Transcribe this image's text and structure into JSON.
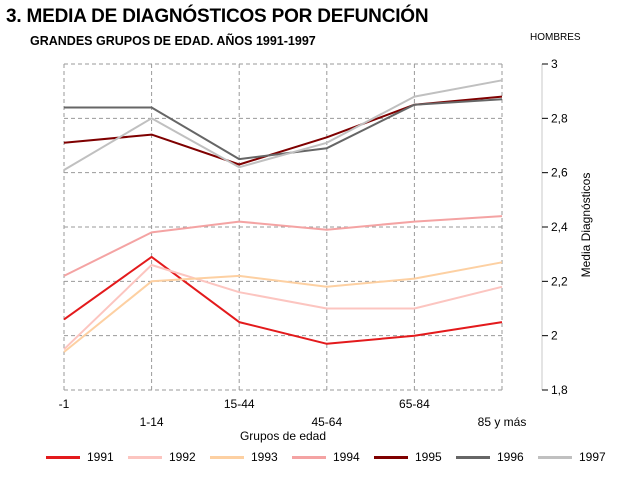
{
  "header": {
    "title": "3. MEDIA DE DIAGNÓSTICOS POR DEFUNCIÓN",
    "subtitle": "GRANDES  GRUPOS DE EDAD. AÑOS 1991-1997",
    "corner_label": "HOMBRES"
  },
  "chart_data": {
    "type": "line",
    "title": "3. MEDIA DE DIAGNÓSTICOS POR DEFUNCIÓN",
    "subtitle": "GRANDES  GRUPOS DE EDAD. AÑOS 1991-1997",
    "xlabel": "Grupos de edad",
    "ylabel": "Media Diagnósticos",
    "categories": [
      "-1",
      "1-14",
      "15-44",
      "45-64",
      "65-84",
      "85 y más"
    ],
    "ylim": [
      1.8,
      3.0
    ],
    "yticks": [
      "1,8",
      "2",
      "2,2",
      "2,4",
      "2,6",
      "2,8",
      "3"
    ],
    "ytick_values": [
      1.8,
      2.0,
      2.2,
      2.4,
      2.6,
      2.8,
      3.0
    ],
    "y_axis_position": "right",
    "grid": true,
    "legend_position": "bottom",
    "series": [
      {
        "name": "1991",
        "color": "#e31a1c",
        "values": [
          2.06,
          2.29,
          2.05,
          1.97,
          2.0,
          2.05
        ]
      },
      {
        "name": "1992",
        "color": "#fcc5c0",
        "values": [
          1.95,
          2.26,
          2.16,
          2.1,
          2.1,
          2.18
        ]
      },
      {
        "name": "1993",
        "color": "#fdd0a2",
        "values": [
          1.94,
          2.2,
          2.22,
          2.18,
          2.21,
          2.27
        ]
      },
      {
        "name": "1994",
        "color": "#f4a3a3",
        "values": [
          2.22,
          2.38,
          2.42,
          2.39,
          2.42,
          2.44
        ]
      },
      {
        "name": "1995",
        "color": "#7f0000",
        "values": [
          2.71,
          2.74,
          2.63,
          2.73,
          2.85,
          2.88
        ]
      },
      {
        "name": "1996",
        "color": "#666666",
        "values": [
          2.84,
          2.84,
          2.65,
          2.69,
          2.85,
          2.87
        ]
      },
      {
        "name": "1997",
        "color": "#c0c0c0",
        "values": [
          2.61,
          2.8,
          2.62,
          2.71,
          2.88,
          2.94
        ]
      }
    ]
  }
}
